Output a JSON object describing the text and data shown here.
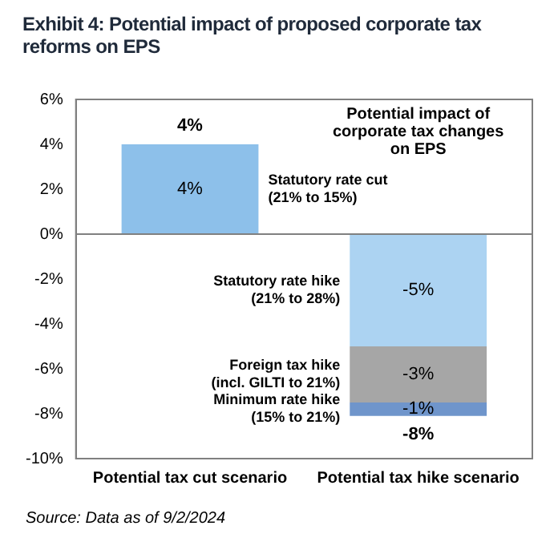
{
  "chart_data": {
    "type": "bar",
    "title": "Exhibit 4: Potential impact of proposed corporate tax reforms on EPS",
    "legend_title": "Potential impact of corporate tax changes on EPS",
    "categories": [
      "Potential tax cut scenario",
      "Potential tax hike scenario"
    ],
    "stacked": true,
    "series": [
      {
        "name": "Statutory rate cut (21% to 15%)",
        "color": "#8dc0ea",
        "values": [
          4,
          null
        ],
        "value_labels": [
          "4%",
          null
        ]
      },
      {
        "name": "Statutory rate hike (21% to 28%)",
        "color": "#acd3f2",
        "values": [
          null,
          -5
        ],
        "value_labels": [
          null,
          "-5%"
        ]
      },
      {
        "name": "Foreign tax hike (incl. GILTI to 21%)",
        "color": "#a6a6a6",
        "values": [
          null,
          -2.5
        ],
        "value_labels": [
          null,
          "-3%"
        ]
      },
      {
        "name": "Minimum rate hike (15% to 21%)",
        "color": "#6f95cb",
        "values": [
          null,
          -0.6
        ],
        "value_labels": [
          null,
          "-1%"
        ]
      }
    ],
    "totals": [
      "4%",
      "-8%"
    ],
    "ylim": [
      -10,
      6
    ],
    "yticks": [
      {
        "value": -10,
        "label": "-10%"
      },
      {
        "value": -8,
        "label": "-8%"
      },
      {
        "value": -6,
        "label": "-6%"
      },
      {
        "value": -4,
        "label": "-4%"
      },
      {
        "value": -2,
        "label": "-2%"
      },
      {
        "value": 0,
        "label": "0%"
      },
      {
        "value": 2,
        "label": "2%"
      },
      {
        "value": 4,
        "label": "4%"
      },
      {
        "value": 6,
        "label": "6%"
      }
    ],
    "grid": false,
    "legend": false,
    "ref_lines": [
      {
        "axis": "y",
        "value": 0,
        "color": "#808080"
      }
    ],
    "annotations": [
      "Source: Data as of 9/2/2024"
    ]
  }
}
